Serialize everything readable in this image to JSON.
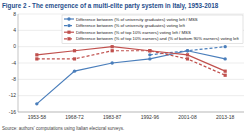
{
  "chart_data": {
    "type": "line",
    "title": "Figure 2 - The emergence of a multi-elite party system in Italy, 1953-2018",
    "source": "Source: authors' computations using Italian electoral surveys.",
    "categories": [
      "1953-58",
      "1968-72",
      "1983-87",
      "1992-96",
      "2001-08",
      "2013-18"
    ],
    "series": [
      {
        "name": "Difference between (% of university graduates) voting left / MSS",
        "color": "#4a7ebb",
        "marker": "circle",
        "line_style": "solid",
        "values": [
          -14,
          -6,
          -4,
          -3,
          -1,
          -3
        ]
      },
      {
        "name": "Difference between (% of university graduates) voting left",
        "color": "#4a7ebb",
        "marker": "circle",
        "line_style": "dashed",
        "values": [
          null,
          null,
          null,
          -2,
          -1,
          0
        ]
      },
      {
        "name": "Difference between (% of top 10% earners) voting left / MSS",
        "color": "#c0504d",
        "marker": "square",
        "line_style": "solid",
        "values": [
          -2,
          -1,
          0,
          -1,
          -2,
          -6
        ]
      },
      {
        "name": "Difference between (% of top 10% earners) and (% of bottom 90% earners) voting left",
        "color": "#c0504d",
        "marker": "square",
        "line_style": "dashed",
        "values": [
          -3,
          -3,
          -1,
          -1,
          -3,
          -7
        ]
      }
    ],
    "ylim": [
      -16,
      8
    ],
    "yticks": [
      -16,
      -12,
      -8,
      -4,
      0,
      4,
      8
    ],
    "grid": true,
    "legend": "top-right"
  }
}
